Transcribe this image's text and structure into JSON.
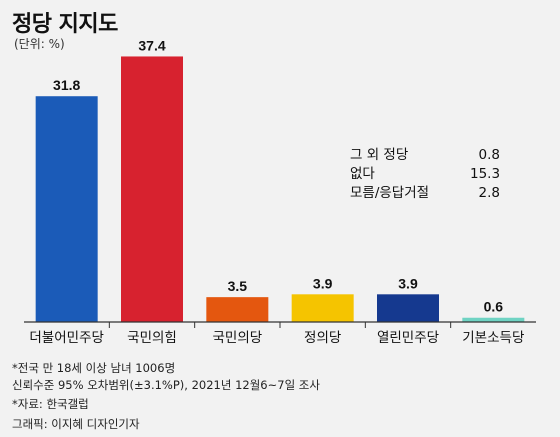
{
  "header": {
    "title": "정당 지지도",
    "unit": "(단위: %)"
  },
  "chart_data": {
    "type": "bar",
    "categories": [
      "더불어민주당",
      "국민의힘",
      "국민의당",
      "정의당",
      "열린민주당",
      "기본소득당"
    ],
    "values": [
      31.8,
      37.4,
      3.5,
      3.9,
      3.9,
      0.6
    ],
    "value_labels": [
      "31.8",
      "37.4",
      "3.5",
      "3.9",
      "3.9",
      "0.6"
    ],
    "colors": [
      "#1b5bb8",
      "#d7222f",
      "#e4570f",
      "#f5c400",
      "#15398f",
      "#6fd3c3"
    ],
    "ylim": [
      0,
      40
    ],
    "title": "정당 지지도",
    "xlabel": "",
    "ylabel": "",
    "grid": false,
    "annotations": [
      {
        "label": "그 외 정당",
        "value": "0.8"
      },
      {
        "label": "없다",
        "value": "15.3"
      },
      {
        "label": "모름/응답거절",
        "value": "2.8"
      }
    ]
  },
  "notes": {
    "survey": "*전국 만 18세 이상 남녀 1006명",
    "confidence": "신뢰수준 95% 오차범위(±3.1%P), 2021년 12월6~7일 조사",
    "source": "*자료: 한국갤럽",
    "graphic": "그래픽: 이지혜 디자인기자"
  }
}
